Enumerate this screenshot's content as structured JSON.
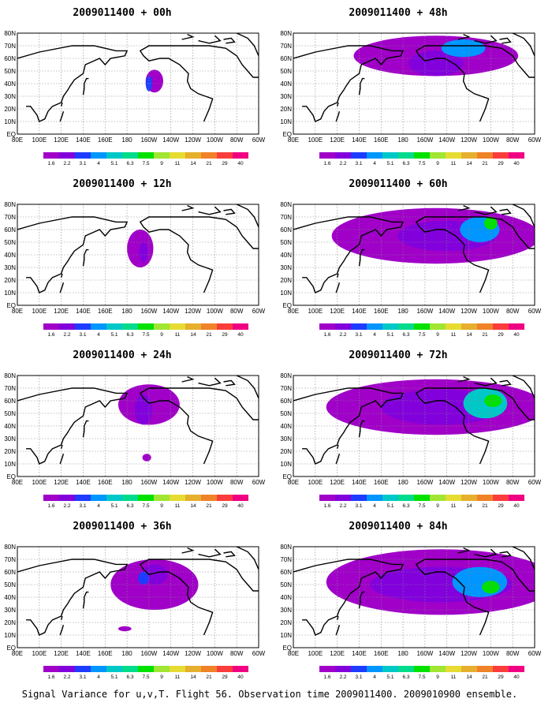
{
  "caption": "Signal Variance for u,v,T. Flight 56. Observation time 2009011400. 2009010900 ensemble.",
  "colorbar": {
    "levels": [
      "1.6",
      "2.2",
      "3.1",
      "4",
      "5.1",
      "6.3",
      "7.5",
      "9",
      "11",
      "14",
      "21",
      "29",
      "40"
    ],
    "colors": [
      "#a000c8",
      "#8200dc",
      "#1e3cff",
      "#0096ff",
      "#00c8c8",
      "#00dc8c",
      "#00e100",
      "#a0e632",
      "#e6dc32",
      "#e6af2d",
      "#f08228",
      "#fa3c3c",
      "#f00082"
    ]
  },
  "axes": {
    "x_ticks": [
      "80E",
      "100E",
      "120E",
      "140E",
      "160E",
      "180",
      "160W",
      "140W",
      "120W",
      "100W",
      "80W",
      "60W"
    ],
    "y_ticks": [
      "EQ",
      "10N",
      "20N",
      "30N",
      "40N",
      "50N",
      "60N",
      "70N",
      "80N"
    ]
  },
  "chart_data": {
    "type": "heatmap",
    "panels": [
      {
        "title": "2009011400 + 00h",
        "blobs": [
          {
            "lon": 205,
            "lat": 42,
            "rx": 8,
            "ry": 9,
            "level": 0
          },
          {
            "lon": 200,
            "lat": 40,
            "rx": 3,
            "ry": 6,
            "level": 2
          }
        ]
      },
      {
        "title": "2009011400 + 12h",
        "blobs": [
          {
            "lon": 192,
            "lat": 45,
            "rx": 12,
            "ry": 15,
            "level": 0
          },
          {
            "lon": 195,
            "lat": 42,
            "rx": 4,
            "ry": 8,
            "level": 1
          }
        ]
      },
      {
        "title": "2009011400 + 24h",
        "blobs": [
          {
            "lon": 200,
            "lat": 57,
            "rx": 28,
            "ry": 16,
            "level": 0
          },
          {
            "lon": 195,
            "lat": 53,
            "rx": 8,
            "ry": 12,
            "level": 1
          },
          {
            "lon": 198,
            "lat": 15,
            "rx": 4,
            "ry": 3,
            "level": 0
          }
        ]
      },
      {
        "title": "2009011400 + 36h",
        "blobs": [
          {
            "lon": 205,
            "lat": 50,
            "rx": 40,
            "ry": 20,
            "level": 0
          },
          {
            "lon": 205,
            "lat": 58,
            "rx": 12,
            "ry": 8,
            "level": 1
          },
          {
            "lon": 195,
            "lat": 55,
            "rx": 5,
            "ry": 5,
            "level": 2
          },
          {
            "lon": 178,
            "lat": 15,
            "rx": 6,
            "ry": 2,
            "level": 0
          }
        ]
      },
      {
        "title": "2009011400 + 48h",
        "blobs": [
          {
            "lon": 210,
            "lat": 62,
            "rx": 75,
            "ry": 16,
            "level": 0
          },
          {
            "lon": 210,
            "lat": 56,
            "rx": 25,
            "ry": 10,
            "level": 1
          },
          {
            "lon": 235,
            "lat": 68,
            "rx": 20,
            "ry": 7,
            "level": 3
          }
        ]
      },
      {
        "title": "2009011400 + 60h",
        "blobs": [
          {
            "lon": 210,
            "lat": 55,
            "rx": 95,
            "ry": 22,
            "level": 0
          },
          {
            "lon": 220,
            "lat": 55,
            "rx": 45,
            "ry": 12,
            "level": 1
          },
          {
            "lon": 250,
            "lat": 60,
            "rx": 18,
            "ry": 10,
            "level": 3
          },
          {
            "lon": 260,
            "lat": 65,
            "rx": 6,
            "ry": 5,
            "level": 6
          }
        ]
      },
      {
        "title": "2009011400 + 72h",
        "blobs": [
          {
            "lon": 210,
            "lat": 55,
            "rx": 100,
            "ry": 22,
            "level": 0
          },
          {
            "lon": 215,
            "lat": 55,
            "rx": 55,
            "ry": 14,
            "level": 1
          },
          {
            "lon": 255,
            "lat": 58,
            "rx": 20,
            "ry": 12,
            "level": 4
          },
          {
            "lon": 262,
            "lat": 60,
            "rx": 8,
            "ry": 5,
            "level": 6
          }
        ]
      },
      {
        "title": "2009011400 + 84h",
        "blobs": [
          {
            "lon": 215,
            "lat": 52,
            "rx": 105,
            "ry": 26,
            "level": 0
          },
          {
            "lon": 215,
            "lat": 50,
            "rx": 65,
            "ry": 14,
            "level": 1
          },
          {
            "lon": 250,
            "lat": 52,
            "rx": 25,
            "ry": 12,
            "level": 3
          },
          {
            "lon": 260,
            "lat": 48,
            "rx": 8,
            "ry": 5,
            "level": 6
          }
        ]
      }
    ],
    "xlim": [
      80,
      300
    ],
    "ylim": [
      0,
      80
    ],
    "grid": true
  }
}
